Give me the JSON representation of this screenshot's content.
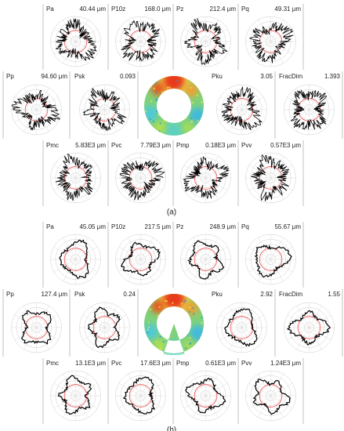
{
  "panels": [
    {
      "label": "(a)",
      "rows": [
        [
          {
            "name": "Pa",
            "value": "40.44 μm"
          },
          {
            "name": "P10z",
            "value": "168.0 μm"
          },
          {
            "name": "Pz",
            "value": "212.4 μm"
          },
          {
            "name": "Pq",
            "value": "49.31 μm"
          }
        ],
        [
          {
            "name": "Pp",
            "value": "94.60 μm"
          },
          {
            "name": "Psk",
            "value": "0.093"
          },
          {
            "name": "Pku",
            "value": "3.05"
          },
          {
            "name": "FracDim",
            "value": "1.393"
          }
        ],
        [
          {
            "name": "Pmc",
            "value": "5.83E3 μm"
          },
          {
            "name": "Pvc",
            "value": "7.79E3 μm"
          },
          {
            "name": "Pmp",
            "value": "0.18E3 μm"
          },
          {
            "name": "Pvv",
            "value": "0.57E3 μm"
          }
        ]
      ]
    },
    {
      "label": "(b)",
      "rows": [
        [
          {
            "name": "Pa",
            "value": "45.05 μm"
          },
          {
            "name": "P10z",
            "value": "217.5 μm"
          },
          {
            "name": "Pz",
            "value": "248.9 μm"
          },
          {
            "name": "Pq",
            "value": "55.67 μm"
          }
        ],
        [
          {
            "name": "Pp",
            "value": "127.4 μm"
          },
          {
            "name": "Psk",
            "value": "0.24"
          },
          {
            "name": "Pku",
            "value": "2.92"
          },
          {
            "name": "FracDim",
            "value": "1.55"
          }
        ],
        [
          {
            "name": "Pmc",
            "value": "13.1E3 μm"
          },
          {
            "name": "Pvc",
            "value": "17.6E3 μm"
          },
          {
            "name": "Pmp",
            "value": "0.61E3 μm"
          },
          {
            "name": "Pvv",
            "value": "1.24E3 μm"
          }
        ]
      ]
    }
  ]
}
